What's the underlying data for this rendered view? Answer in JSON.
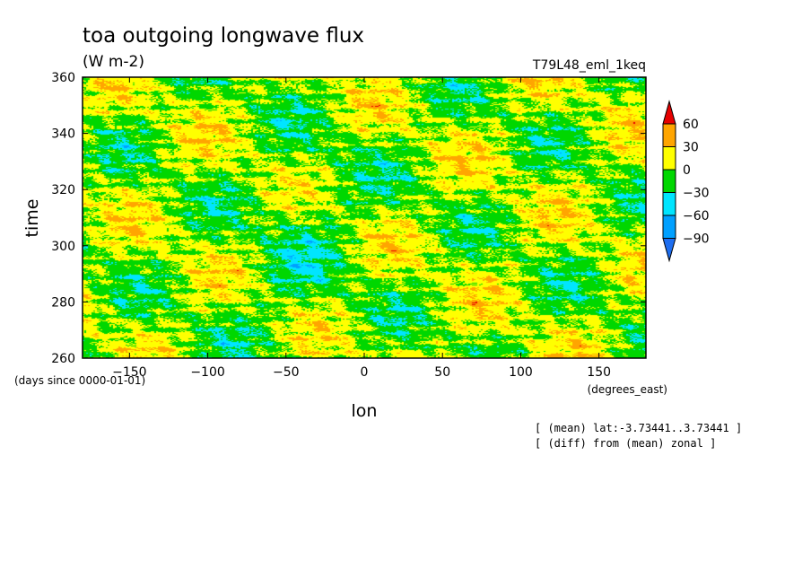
{
  "chart_data": {
    "type": "heatmap",
    "title": "toa outgoing longwave flux",
    "subtitle": "(W m-2)",
    "run_label": "T79L48_eml_1keq",
    "xlabel": "lon",
    "ylabel": "time",
    "x_units": "(degrees_east)",
    "y_units": "(days since 0000-01-01)",
    "xlim": [
      -180,
      180
    ],
    "ylim": [
      260,
      360
    ],
    "x_ticks": [
      -150,
      -100,
      -50,
      0,
      50,
      100,
      150
    ],
    "y_ticks": [
      260,
      280,
      300,
      320,
      340,
      360
    ],
    "colorbar": {
      "levels": [
        -90,
        -60,
        -30,
        0,
        30,
        60
      ],
      "colors": [
        "#1e6ef0",
        "#00a0ff",
        "#00e5ff",
        "#00d700",
        "#ffff00",
        "#ffa500",
        "#e60000"
      ]
    },
    "notes": [
      "[ (mean) lat:-3.73441..3.73441 ]",
      "[ (diff) from (mean) zonal ]"
    ]
  }
}
